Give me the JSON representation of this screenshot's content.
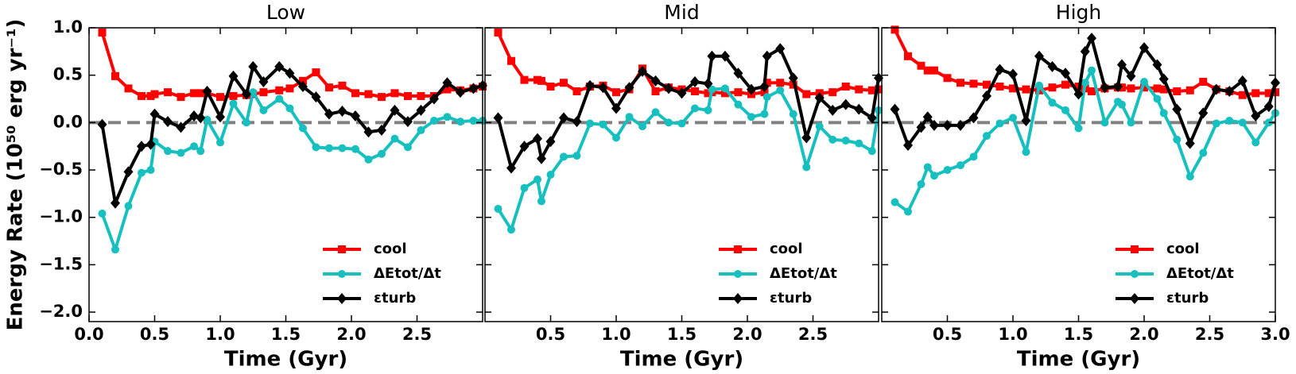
{
  "chart_data": [
    {
      "type": "line",
      "title": "Low",
      "xlabel": "Time (Gyr)",
      "ylabel": "Energy Rate (10⁵⁰ erg yr⁻¹)",
      "xlim": [
        0,
        3
      ],
      "ylim": [
        -2.1,
        1.0
      ],
      "hline": 0,
      "xticks": [
        {
          "value": 0,
          "label": "0.0"
        },
        0.5,
        {
          "value": 1,
          "label": "1.0"
        },
        1.5,
        {
          "value": 2,
          "label": "2.0"
        },
        2.5
      ],
      "yticks": [
        {
          "value": -2,
          "label": "−2.0"
        },
        {
          "value": -1.5,
          "label": "−1.5"
        },
        {
          "value": -1,
          "label": "−1.0"
        },
        {
          "value": -0.5,
          "label": "−0.5"
        },
        {
          "value": 0,
          "label": "0.0"
        },
        0.5,
        {
          "value": 1,
          "label": "1.0"
        }
      ],
      "x": [
        0.1,
        0.2,
        0.3,
        0.4,
        0.47,
        0.5,
        0.6,
        0.7,
        0.8,
        0.85,
        0.9,
        1.0,
        1.1,
        1.2,
        1.25,
        1.33,
        1.45,
        1.53,
        1.63,
        1.73,
        1.83,
        1.93,
        2.03,
        2.13,
        2.23,
        2.33,
        2.43,
        2.53,
        2.63,
        2.73,
        2.83,
        2.93,
        3.0
      ],
      "series": [
        {
          "name": "cool",
          "color": "#ff0000",
          "marker": "square",
          "values": [
            0.95,
            0.49,
            0.36,
            0.28,
            0.28,
            0.3,
            0.32,
            0.27,
            0.31,
            0.31,
            0.31,
            0.27,
            0.28,
            0.29,
            0.3,
            0.32,
            0.34,
            0.36,
            0.44,
            0.53,
            0.37,
            0.39,
            0.31,
            0.3,
            0.27,
            0.31,
            0.28,
            0.28,
            0.28,
            0.35,
            0.34,
            0.36,
            0.38
          ]
        },
        {
          "name": "ΔEtot/Δt",
          "color": "#17bfbf",
          "marker": "circle",
          "values": [
            -0.96,
            -1.34,
            -0.88,
            -0.53,
            -0.5,
            -0.2,
            -0.3,
            -0.32,
            -0.25,
            -0.3,
            0.03,
            -0.21,
            0.2,
            0.0,
            0.32,
            0.13,
            0.25,
            0.15,
            -0.06,
            -0.26,
            -0.27,
            -0.27,
            -0.28,
            -0.39,
            -0.33,
            -0.17,
            -0.26,
            -0.08,
            0.02,
            0.06,
            0.01,
            0.02,
            0.02
          ]
        },
        {
          "name": "εturb",
          "color": "#000000",
          "marker": "diamond",
          "values": [
            -0.02,
            -0.85,
            -0.52,
            -0.25,
            -0.23,
            0.09,
            0.01,
            -0.05,
            0.07,
            0.05,
            0.33,
            0.06,
            0.49,
            0.3,
            0.59,
            0.43,
            0.59,
            0.52,
            0.38,
            0.27,
            0.09,
            0.12,
            0.07,
            -0.1,
            -0.08,
            0.13,
            0.01,
            0.13,
            0.25,
            0.42,
            0.32,
            0.36,
            0.39
          ]
        }
      ]
    },
    {
      "type": "line",
      "title": "Mid",
      "xlabel": "Time (Gyr)",
      "xlim": [
        0,
        3
      ],
      "ylim": [
        -2.1,
        1.0
      ],
      "hline": 0,
      "xticks": [
        0.5,
        {
          "value": 1,
          "label": "1.0"
        },
        1.5,
        {
          "value": 2,
          "label": "2.0"
        },
        2.5
      ],
      "x": [
        0.1,
        0.2,
        0.3,
        0.4,
        0.43,
        0.5,
        0.6,
        0.7,
        0.8,
        0.9,
        1.0,
        1.1,
        1.2,
        1.3,
        1.4,
        1.5,
        1.6,
        1.7,
        1.73,
        1.83,
        1.93,
        2.03,
        2.13,
        2.15,
        2.25,
        2.35,
        2.45,
        2.55,
        2.65,
        2.75,
        2.85,
        2.95,
        3.0
      ],
      "series": [
        {
          "name": "cool",
          "color": "#ff0000",
          "marker": "square",
          "values": [
            0.95,
            0.65,
            0.45,
            0.45,
            0.44,
            0.38,
            0.42,
            0.33,
            0.38,
            0.39,
            0.32,
            0.35,
            0.57,
            0.33,
            0.37,
            0.35,
            0.33,
            0.31,
            0.32,
            0.31,
            0.32,
            0.3,
            0.32,
            0.42,
            0.42,
            0.4,
            0.3,
            0.31,
            0.32,
            0.38,
            0.35,
            0.34,
            0.35
          ]
        },
        {
          "name": "ΔEtot/Δt",
          "color": "#17bfbf",
          "marker": "circle",
          "values": [
            -0.91,
            -1.13,
            -0.69,
            -0.6,
            -0.83,
            -0.55,
            -0.36,
            -0.35,
            -0.01,
            -0.02,
            -0.16,
            0.06,
            -0.04,
            0.11,
            0.0,
            -0.01,
            0.15,
            0.13,
            0.35,
            0.36,
            0.19,
            0.06,
            0.09,
            0.27,
            0.34,
            0.09,
            -0.47,
            -0.04,
            -0.18,
            -0.19,
            -0.22,
            -0.3,
            0.13
          ]
        },
        {
          "name": "εturb",
          "color": "#000000",
          "marker": "diamond",
          "values": [
            0.05,
            -0.48,
            -0.25,
            -0.17,
            -0.38,
            -0.2,
            0.05,
            0.01,
            0.39,
            0.37,
            0.15,
            0.37,
            0.54,
            0.44,
            0.36,
            0.31,
            0.43,
            0.41,
            0.7,
            0.7,
            0.52,
            0.35,
            0.38,
            0.7,
            0.78,
            0.47,
            -0.16,
            0.26,
            0.13,
            0.19,
            0.14,
            0.05,
            0.47
          ]
        }
      ]
    },
    {
      "type": "line",
      "title": "High",
      "xlabel": "Time (Gyr)",
      "xlim": [
        0,
        3
      ],
      "ylim": [
        -2.1,
        1.0
      ],
      "hline": 0,
      "xticks": [
        0.5,
        {
          "value": 1,
          "label": "1.0"
        },
        1.5,
        {
          "value": 2,
          "label": "2.0"
        },
        2.5,
        {
          "value": 3,
          "label": "3.0"
        }
      ],
      "x": [
        0.1,
        0.2,
        0.3,
        0.35,
        0.4,
        0.5,
        0.6,
        0.7,
        0.8,
        0.9,
        1.0,
        1.1,
        1.2,
        1.3,
        1.4,
        1.5,
        1.55,
        1.6,
        1.7,
        1.8,
        1.83,
        1.9,
        2.0,
        2.1,
        2.15,
        2.25,
        2.35,
        2.45,
        2.55,
        2.65,
        2.75,
        2.85,
        2.95,
        3.0
      ],
      "series": [
        {
          "name": "cool",
          "color": "#ff0000",
          "marker": "square",
          "values": [
            0.98,
            0.7,
            0.6,
            0.55,
            0.55,
            0.47,
            0.42,
            0.41,
            0.4,
            0.38,
            0.36,
            0.35,
            0.34,
            0.37,
            0.4,
            0.38,
            0.36,
            0.33,
            0.36,
            0.37,
            0.37,
            0.36,
            0.37,
            0.36,
            0.35,
            0.33,
            0.34,
            0.43,
            0.35,
            0.33,
            0.29,
            0.31,
            0.31,
            0.32
          ]
        },
        {
          "name": "ΔEtot/Δt",
          "color": "#17bfbf",
          "marker": "circle",
          "values": [
            -0.84,
            -0.94,
            -0.65,
            -0.47,
            -0.56,
            -0.5,
            -0.45,
            -0.36,
            -0.14,
            -0.01,
            0.05,
            -0.31,
            0.39,
            0.21,
            0.13,
            -0.06,
            0.42,
            0.55,
            0.0,
            0.22,
            0.19,
            0.0,
            0.43,
            0.25,
            0.1,
            -0.18,
            -0.57,
            -0.32,
            -0.01,
            0.02,
            0.0,
            -0.21,
            0.0,
            0.1
          ]
        },
        {
          "name": "εturb",
          "color": "#000000",
          "marker": "diamond",
          "values": [
            0.14,
            -0.24,
            -0.05,
            0.06,
            -0.03,
            -0.03,
            -0.03,
            0.05,
            0.28,
            0.56,
            0.51,
            0.02,
            0.7,
            0.59,
            0.52,
            0.3,
            0.75,
            0.89,
            0.37,
            0.38,
            0.61,
            0.49,
            0.79,
            0.61,
            0.46,
            0.14,
            -0.22,
            0.1,
            0.35,
            0.33,
            0.44,
            0.07,
            0.17,
            0.42
          ]
        }
      ]
    }
  ]
}
